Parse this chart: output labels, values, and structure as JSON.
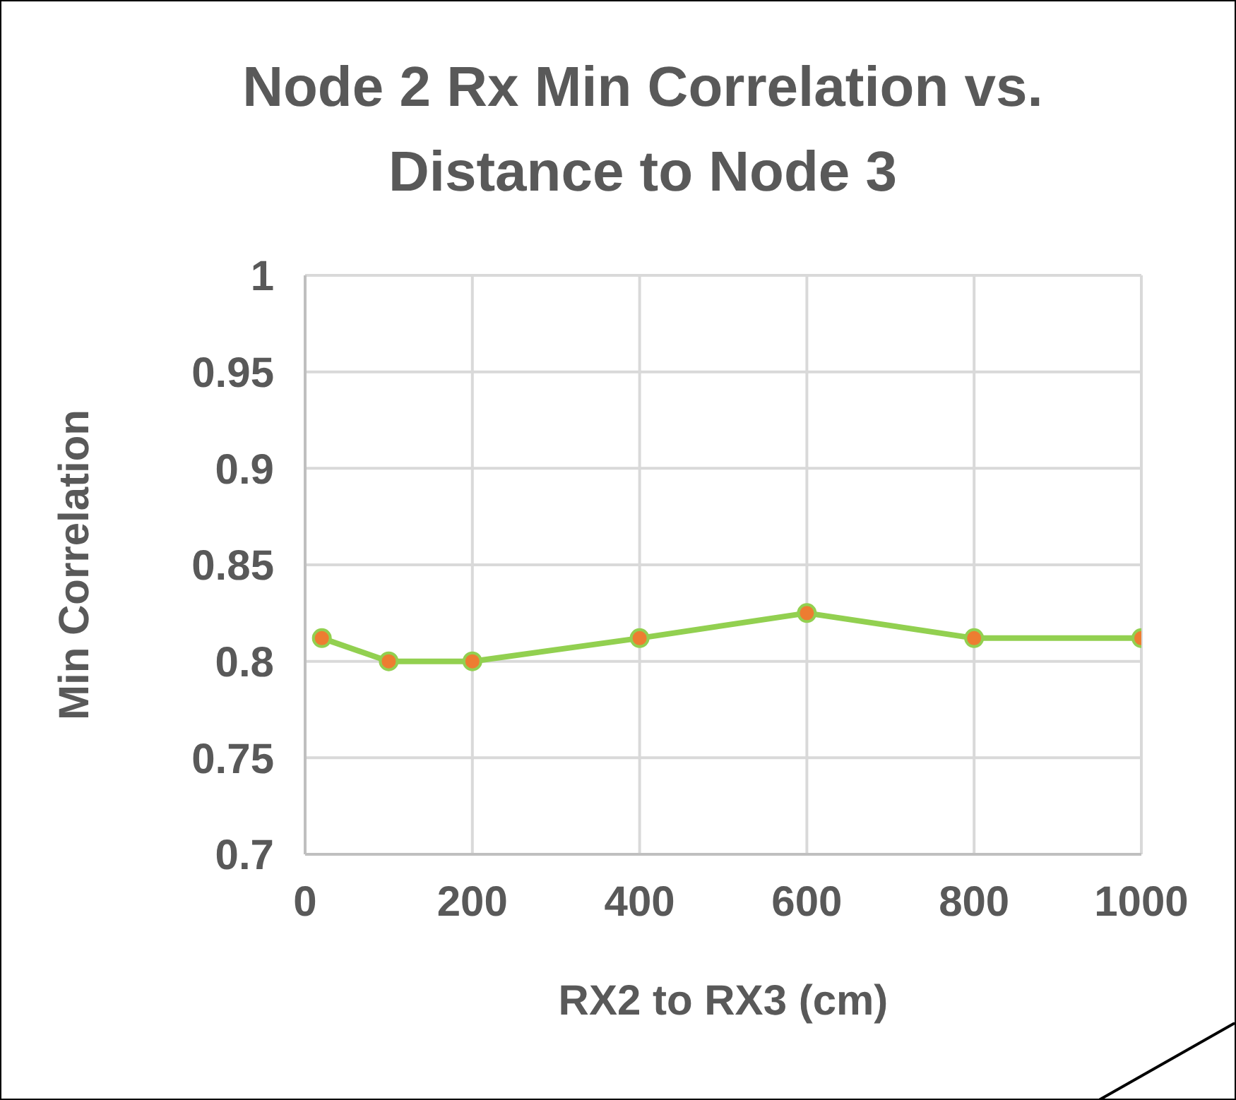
{
  "chart_data": {
    "type": "line",
    "title": "Node 2 Rx Min Correlation vs.\nDistance to Node 3",
    "xlabel": "RX2 to RX3 (cm)",
    "ylabel": "Min Correlation",
    "x": [
      20,
      100,
      200,
      400,
      600,
      800,
      1000
    ],
    "series": [
      {
        "color": "#92d050",
        "colors": [
          "#ed7d31",
          "#ed7d31",
          "#ed7d31",
          "#ed7d31",
          "#ed7d31",
          "#ed7d31",
          "#ed7d31"
        ],
        "values": [
          0.812,
          0.8,
          0.8,
          0.812,
          0.825,
          0.812,
          0.812
        ]
      }
    ],
    "xlim": [
      0,
      1000
    ],
    "xticks": [
      0,
      200,
      400,
      600,
      800,
      1000
    ],
    "ylim": [
      0.7,
      1
    ],
    "yticks": [
      0.7,
      0.75,
      0.8,
      0.85,
      0.9,
      0.95,
      1
    ],
    "grid": true,
    "marker": "circle",
    "line_style": "solid",
    "legend": false
  }
}
